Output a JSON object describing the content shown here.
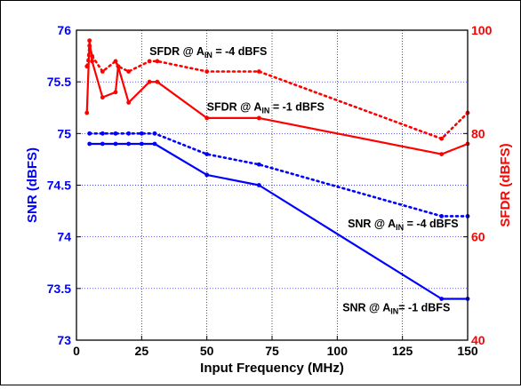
{
  "chart_data": {
    "type": "line",
    "xlabel": "Input Frequency (MHz)",
    "ylabel_left": "SNR (dBFS)",
    "ylabel_right": "SFDR (dBFS)",
    "xlim": [
      0,
      150
    ],
    "ylim_left": [
      73,
      76
    ],
    "ylim_right": [
      40,
      100
    ],
    "x_ticks": [
      "0",
      "25",
      "50",
      "75",
      "100",
      "125",
      "150"
    ],
    "y_left_ticks": [
      "73",
      "73.5",
      "74",
      "74.5",
      "75",
      "75.5",
      "76"
    ],
    "y_right_ticks": [
      "40",
      "60",
      "80",
      "100"
    ],
    "grid": true,
    "colors": {
      "snr": "#0000ff",
      "sfdr": "#ff0000"
    },
    "series": [
      {
        "axis": "left",
        "style": "dotted",
        "color": "#0000ff",
        "x": [
          5,
          10,
          15,
          20,
          25,
          30,
          50,
          70,
          140,
          150
        ],
        "y": [
          75.0,
          75.0,
          75.0,
          75.0,
          75.0,
          75.0,
          74.8,
          74.7,
          74.2,
          74.2
        ]
      },
      {
        "axis": "left",
        "style": "solid",
        "color": "#0000ff",
        "x": [
          5,
          10,
          15,
          20,
          25,
          30,
          50,
          70,
          140,
          150
        ],
        "y": [
          74.9,
          74.9,
          74.9,
          74.9,
          74.9,
          74.9,
          74.6,
          74.5,
          73.4,
          73.4
        ]
      },
      {
        "axis": "right",
        "style": "dotted",
        "color": "#ff0000",
        "x": [
          4,
          5,
          6,
          10,
          15,
          16,
          20,
          28,
          31,
          50,
          70,
          140,
          150
        ],
        "y": [
          93,
          97,
          95,
          92,
          94,
          93,
          92,
          94,
          94,
          92,
          92,
          79,
          84
        ]
      },
      {
        "axis": "right",
        "style": "solid",
        "color": "#ff0000",
        "x": [
          4,
          5,
          6,
          10,
          15,
          16,
          20,
          28,
          31,
          50,
          70,
          140,
          150
        ],
        "y": [
          84,
          98,
          94,
          87,
          88,
          93,
          86,
          90,
          90,
          83,
          83,
          76,
          78
        ]
      }
    ],
    "annotations": [
      {
        "lead": "SFDR @ A",
        "sub": "IN",
        "tail": " = -4 dBFS",
        "x": 28,
        "y_left": 75.76
      },
      {
        "lead": "SFDR @ A",
        "sub": "IN",
        "tail": " = -1 dBFS",
        "x": 50,
        "y_left": 75.22
      },
      {
        "lead": "SNR @ A",
        "sub": "IN",
        "tail": " = -4 dBFS",
        "x": 104,
        "y_left": 74.09
      },
      {
        "lead": "SNR @ A",
        "sub": "IN",
        "tail": "= -1 dBFS",
        "x": 102,
        "y_left": 73.28
      }
    ]
  }
}
